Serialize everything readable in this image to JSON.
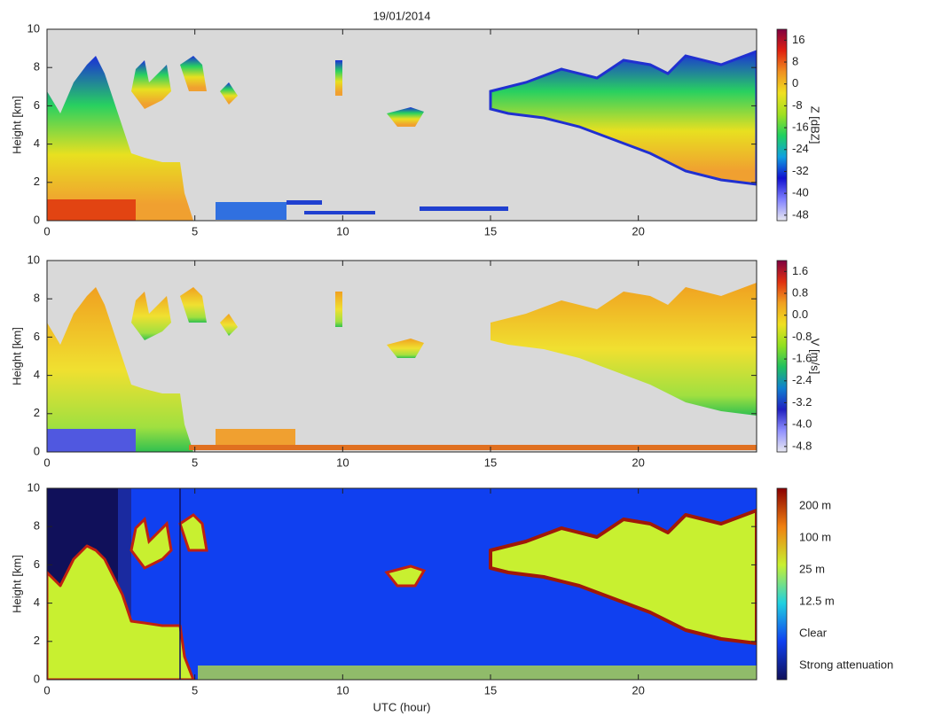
{
  "chart_data": [
    {
      "type": "heatmap",
      "title": "19/01/2014",
      "ylabel": "Height [km]",
      "background": "#d9d9d9",
      "xlim": [
        0,
        24
      ],
      "xticks": [
        0,
        5,
        10,
        15,
        20
      ],
      "ylim": [
        0,
        10
      ],
      "yticks": [
        0,
        2,
        4,
        6,
        8,
        10
      ],
      "colorbar": {
        "label": "Z [dBZ]",
        "lim": [
          -50,
          20
        ],
        "ticks": [
          16,
          8,
          0,
          -8,
          -16,
          -24,
          -32,
          -40,
          -48
        ],
        "colors": [
          "#e8e8f0",
          "#8080ff",
          "#1010d0",
          "#10a0e0",
          "#20d060",
          "#a0e020",
          "#f0e020",
          "#f09020",
          "#e02010",
          "#800040"
        ]
      }
    },
    {
      "type": "heatmap",
      "ylabel": "Height [km]",
      "background": "#d9d9d9",
      "xlim": [
        0,
        24
      ],
      "xticks": [
        0,
        5,
        10,
        15,
        20
      ],
      "ylim": [
        0,
        10
      ],
      "yticks": [
        0,
        2,
        4,
        6,
        8,
        10
      ],
      "colorbar": {
        "label": "V [m/s]",
        "lim": [
          -5,
          2
        ],
        "ticks": [
          1.6,
          0.8,
          {
            "value": 0,
            "label": "0.0"
          },
          -0.8,
          -1.6,
          -2.4,
          -3.2,
          {
            "value": -4,
            "label": "-4.0"
          },
          -4.8
        ],
        "colors": [
          "#e8e8f0",
          "#9090ff",
          "#2020c0",
          "#1080d0",
          "#20c060",
          "#90e020",
          "#f0e020",
          "#f0a020",
          "#e03010",
          "#800040"
        ]
      }
    },
    {
      "type": "heatmap",
      "ylabel": "Height [km]",
      "xlabel": "UTC (hour)",
      "background": "#1040f0",
      "xlim": [
        0,
        24
      ],
      "xticks": [
        0,
        5,
        10,
        15,
        20
      ],
      "ylim": [
        0,
        10
      ],
      "yticks": [
        0,
        2,
        4,
        6,
        8,
        10
      ],
      "colorbar": {
        "labels": [
          "200 m",
          "100 m",
          "25 m",
          "12.5 m",
          "Clear",
          "Strong attenuation"
        ],
        "colors": [
          "#10105a",
          "#1040f0",
          "#20d0e0",
          "#c8f030",
          "#f08010",
          "#8a0000"
        ]
      }
    }
  ]
}
